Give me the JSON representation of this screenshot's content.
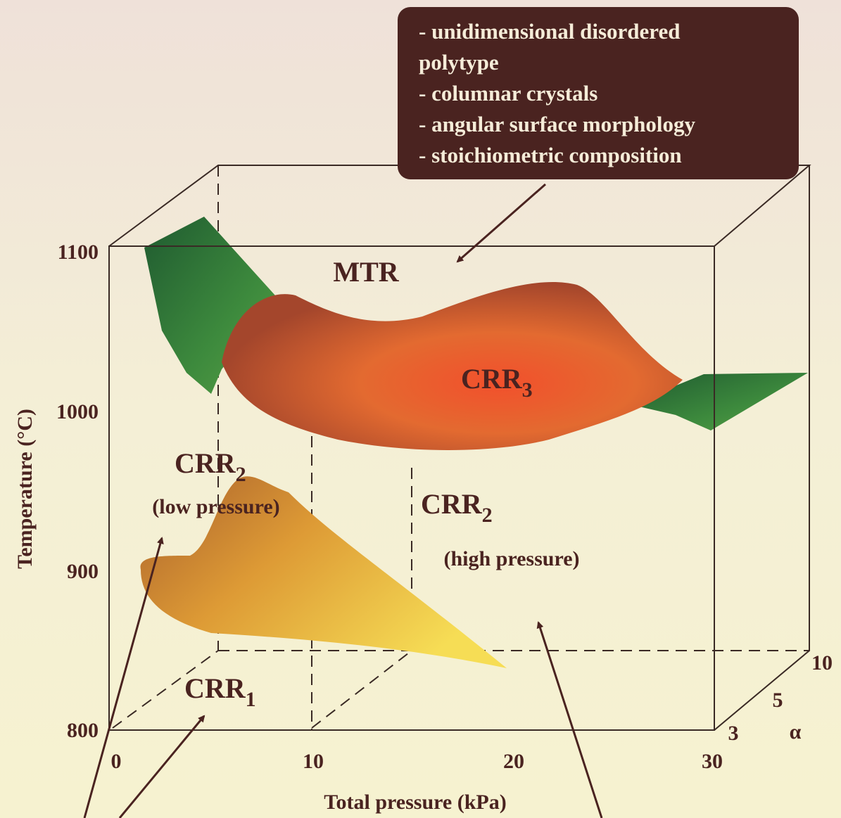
{
  "callout": {
    "lines": [
      "- unidimensional disordered",
      "polytype",
      "- columnar crystals",
      "- angular surface morphology",
      "- stoichiometric composition"
    ]
  },
  "y_axis": {
    "label": "Temperature (°C)",
    "ticks": [
      "1100",
      "1000",
      "900",
      "800"
    ]
  },
  "x_axis": {
    "label": "Total pressure (kPa)",
    "ticks": [
      "0",
      "10",
      "20",
      "30"
    ]
  },
  "depth_axis": {
    "label": "α",
    "ticks": [
      "3",
      "5",
      "10"
    ]
  },
  "regions": {
    "mtr": "MTR",
    "crr3": {
      "main": "CRR",
      "sub": "3"
    },
    "crr2_low": {
      "main": "CRR",
      "sub": "2",
      "note": "(low pressure)"
    },
    "crr2_high": {
      "main": "CRR",
      "sub": "2",
      "note": "(high pressure)"
    },
    "crr1": {
      "main": "CRR",
      "sub": "1"
    }
  }
}
